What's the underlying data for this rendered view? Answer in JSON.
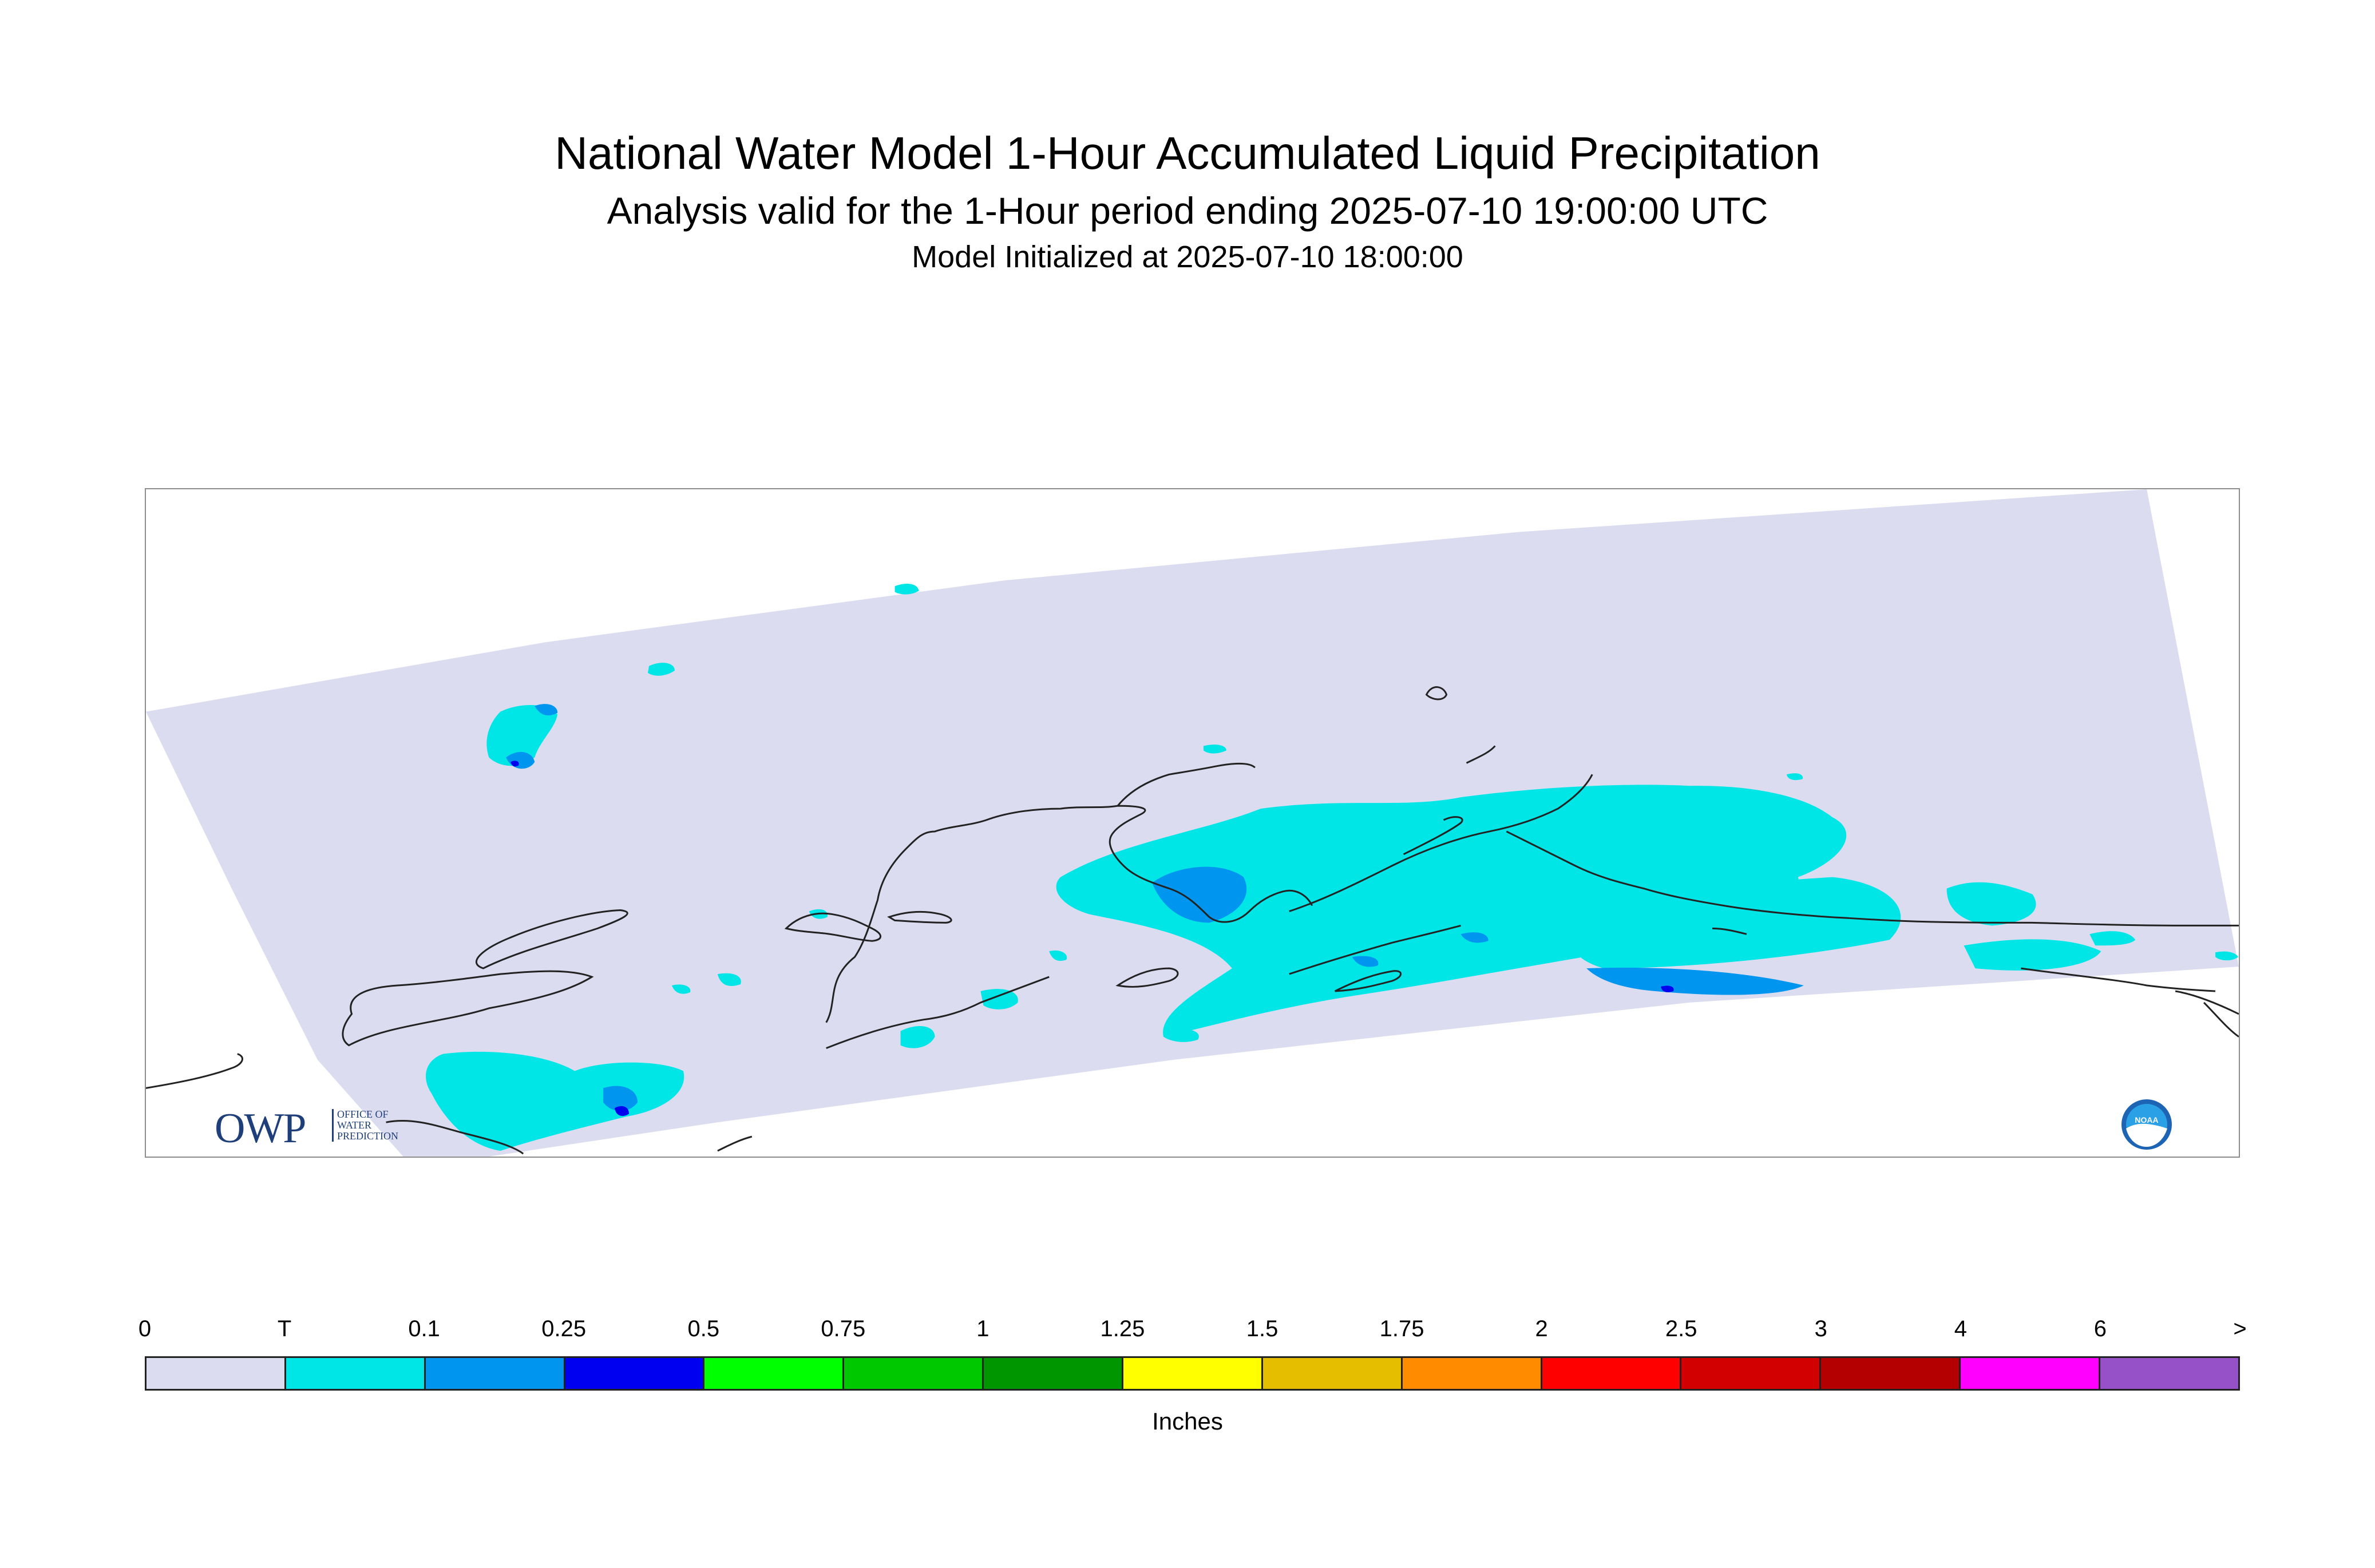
{
  "title": "National Water Model 1-Hour Accumulated Liquid Precipitation",
  "subtitle": "Analysis valid for the 1-Hour period ending 2025-07-10 19:00:00 UTC",
  "init_line": "Model Initialized at 2025-07-10 18:00:00",
  "logos": {
    "owp_text": "OWP",
    "owp_small_lines": [
      "OFFICE OF",
      "WATER",
      "PREDICTION"
    ],
    "noaa_text": "NOAA"
  },
  "legend": {
    "labels": [
      "0",
      "T",
      "0.1",
      "0.25",
      "0.5",
      "0.75",
      "1",
      "1.25",
      "1.5",
      "1.75",
      "2",
      "2.5",
      "3",
      "4",
      "6",
      ">"
    ],
    "colors": [
      "#dcdcf0",
      "#00e6e6",
      "#0096f0",
      "#0000f0",
      "#00ff00",
      "#00c800",
      "#009600",
      "#ffff00",
      "#e6be00",
      "#ff8c00",
      "#ff0000",
      "#d20000",
      "#b40000",
      "#ff00ff",
      "#9650c8"
    ],
    "units": "Inches"
  },
  "colors": {
    "domain_fill": "#dcdcf0",
    "trace": "#00e6e6",
    "light_blue": "#0096f0",
    "blue": "#0000f0",
    "coastline": "#222222"
  }
}
